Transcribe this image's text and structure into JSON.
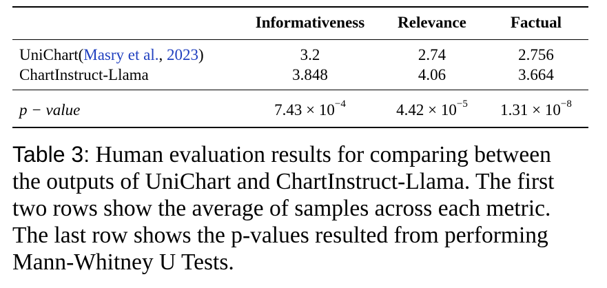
{
  "table": {
    "header": [
      "Informativeness",
      "Relevance",
      "Factual"
    ],
    "rows": [
      {
        "label": [
          "UniChart(",
          "Masry et al.",
          ", ",
          "2023",
          ")"
        ],
        "cells": [
          "3.2",
          "2.74",
          "2.756"
        ]
      },
      {
        "label": [
          "ChartInstruct-Llama"
        ],
        "cells": [
          "3.848",
          "4.06",
          "3.664"
        ]
      }
    ],
    "pvalue_row": {
      "label": "p − value",
      "cells": [
        {
          "base": "7.43 × 10",
          "exp": "−4"
        },
        {
          "base": "4.42 × 10",
          "exp": "−5"
        },
        {
          "base": "1.31 × 10",
          "exp": "−8"
        }
      ]
    }
  },
  "caption": {
    "label": "Table 3:",
    "lines": [
      "Human evaluation results for comparing between",
      "the outputs of UniChart and ChartInstruct-Llama. The first",
      "two rows show the average of samples across each metric.",
      "The last row shows the p-values resulted from performing",
      "Mann-Whitney U Tests."
    ]
  }
}
